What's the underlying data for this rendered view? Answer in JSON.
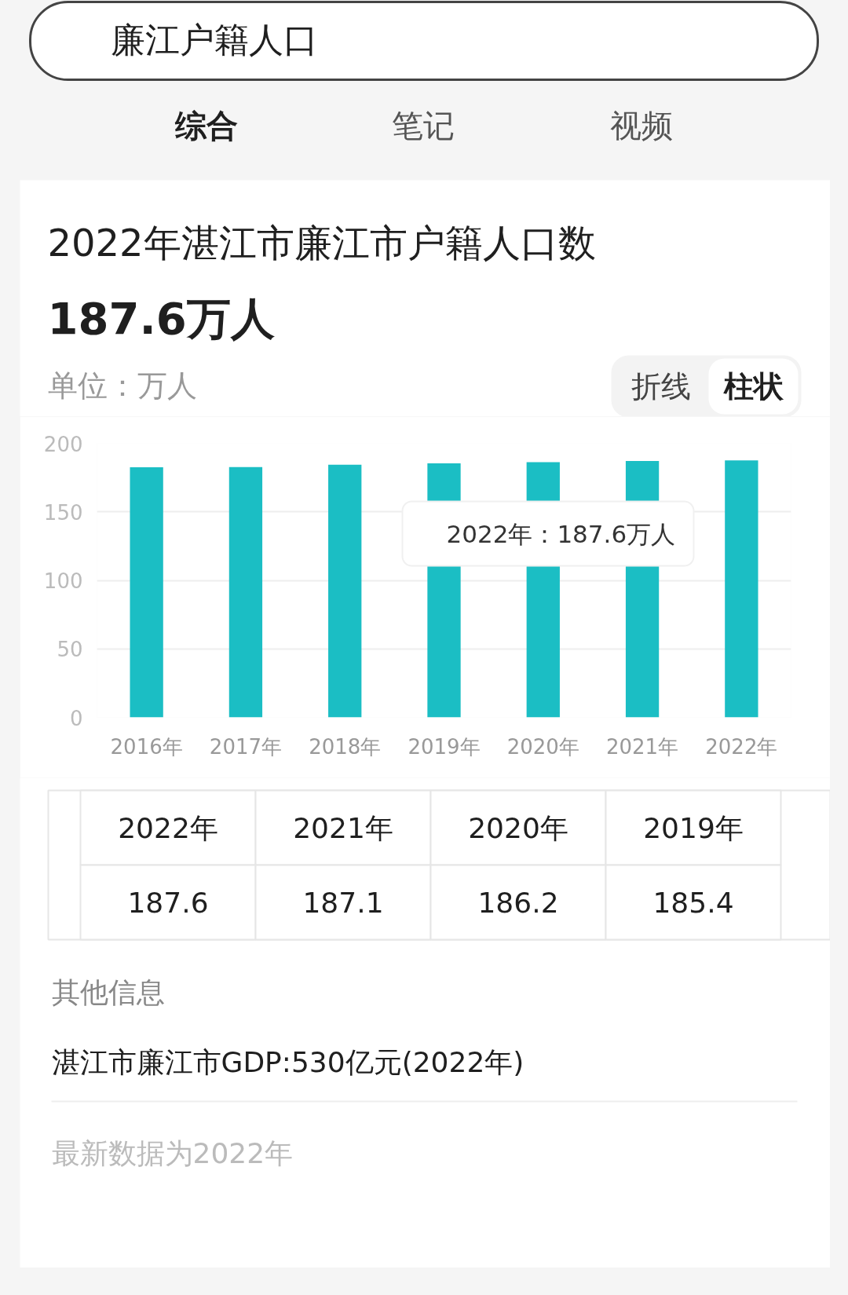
{
  "chart_data": {
    "type": "bar",
    "title": "2022年湛江市廉江市户籍人口数",
    "subtitle": "187.6万人",
    "ylabel": "单位：万人",
    "categories": [
      "2016年",
      "2017年",
      "2018年",
      "2019年",
      "2020年",
      "2021年",
      "2022年"
    ],
    "values": [
      182.5,
      182.6,
      184.4,
      185.4,
      186.2,
      187.1,
      187.6
    ],
    "color": "#1bbec4",
    "ylim": [
      0,
      200
    ],
    "yticks": [
      0,
      50,
      100,
      150,
      200
    ],
    "grid": "y",
    "annotations": [
      "廉江户籍人口",
      "综合",
      "笔记",
      "视频",
      "折线",
      "柱状",
      "2022年：187.6万人",
      "2022年",
      "2021年",
      "2020年",
      "2019年",
      "187.6",
      "187.1",
      "186.2",
      "185.4",
      "其他信息",
      "湛江市廉江市GDP:530亿元(2022年)",
      "最新数据为2022年"
    ]
  }
}
